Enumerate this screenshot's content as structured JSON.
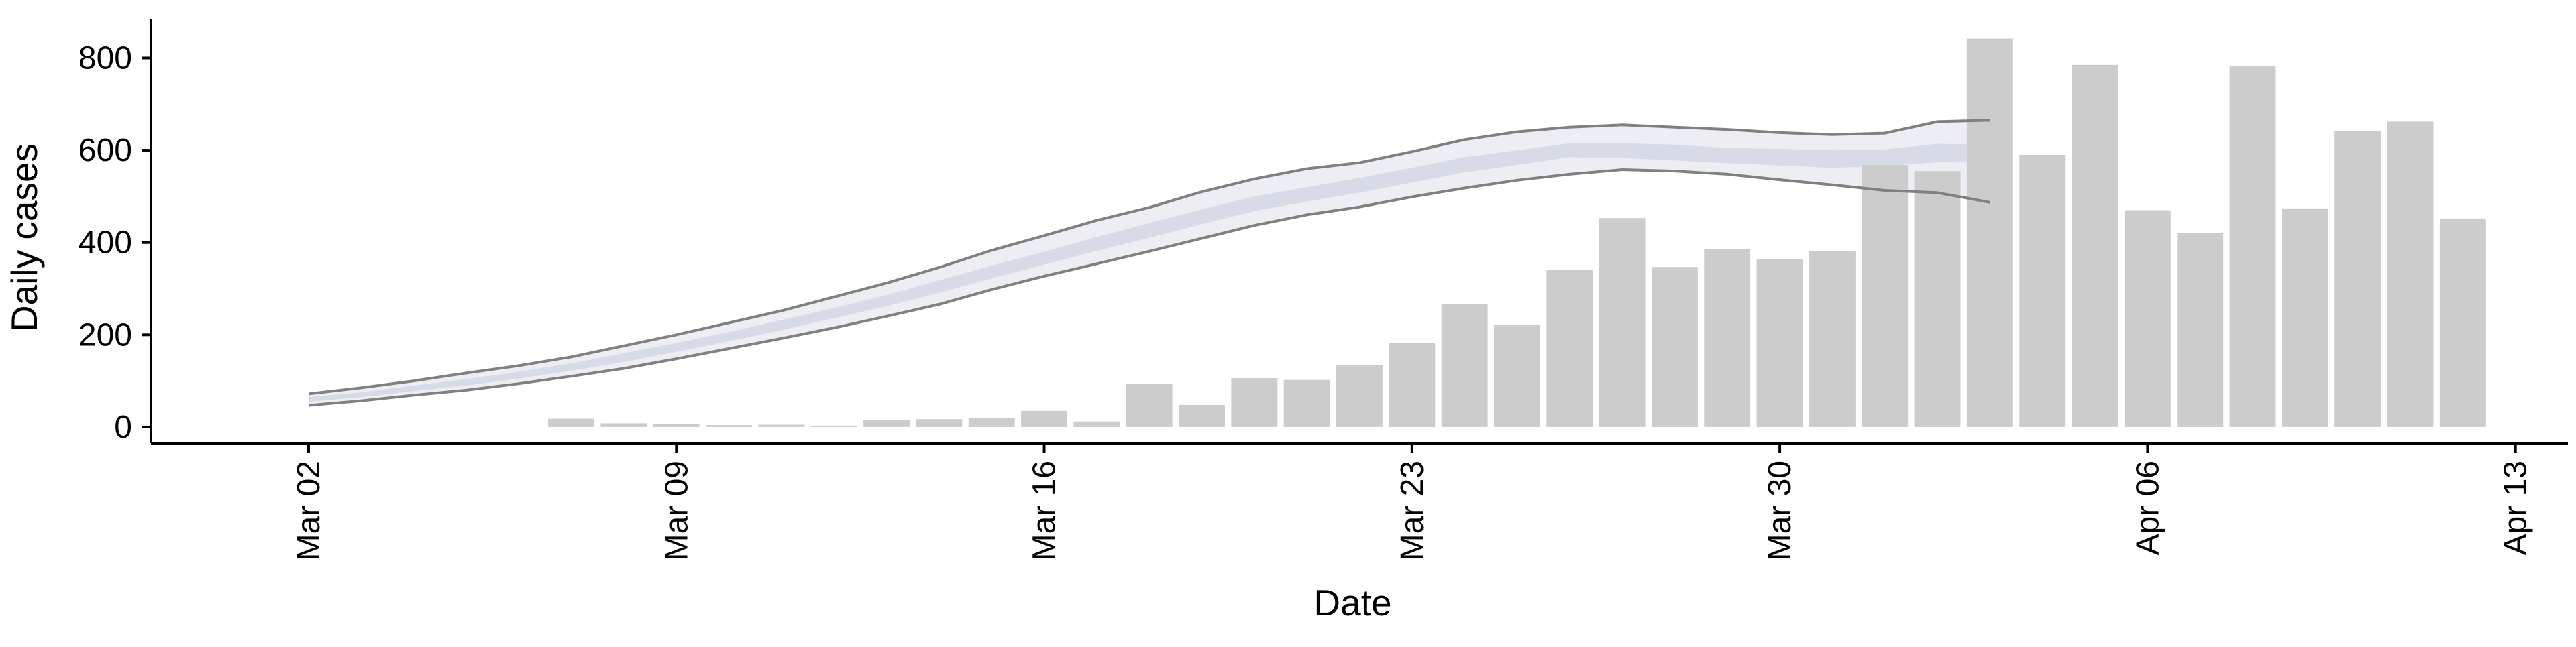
{
  "chart_data": {
    "type": "bar",
    "xlabel": "Date",
    "ylabel": "Daily cases",
    "ylim": [
      -35,
      885
    ],
    "y_ticks": [
      0,
      200,
      400,
      600,
      800
    ],
    "x_ticks": [
      {
        "date": "2020-03-02",
        "label": "Mar 02"
      },
      {
        "date": "2020-03-09",
        "label": "Mar 09"
      },
      {
        "date": "2020-03-16",
        "label": "Mar 16"
      },
      {
        "date": "2020-03-23",
        "label": "Mar 23"
      },
      {
        "date": "2020-03-30",
        "label": "Mar 30"
      },
      {
        "date": "2020-04-06",
        "label": "Apr 06"
      },
      {
        "date": "2020-04-13",
        "label": "Apr 13"
      }
    ],
    "xlim": [
      "2020-02-28",
      "2020-04-14"
    ],
    "grid": false,
    "bars": {
      "color": "#cccccc",
      "dates": [
        "2020-03-07",
        "2020-03-08",
        "2020-03-09",
        "2020-03-10",
        "2020-03-11",
        "2020-03-12",
        "2020-03-13",
        "2020-03-14",
        "2020-03-15",
        "2020-03-16",
        "2020-03-17",
        "2020-03-18",
        "2020-03-19",
        "2020-03-20",
        "2020-03-21",
        "2020-03-22",
        "2020-03-23",
        "2020-03-24",
        "2020-03-25",
        "2020-03-26",
        "2020-03-27",
        "2020-03-28",
        "2020-03-29",
        "2020-03-30",
        "2020-03-31",
        "2020-04-01",
        "2020-04-02",
        "2020-04-03",
        "2020-04-04",
        "2020-04-05",
        "2020-04-06",
        "2020-04-07",
        "2020-04-08",
        "2020-04-09",
        "2020-04-10",
        "2020-04-11",
        "2020-04-12"
      ],
      "values": [
        18,
        8,
        6,
        4,
        5,
        3,
        15,
        17,
        20,
        35,
        12,
        93,
        48,
        106,
        102,
        134,
        183,
        266,
        222,
        341,
        453,
        347,
        386,
        364,
        381,
        568,
        555,
        842,
        590,
        785,
        470,
        421,
        782,
        474,
        641,
        662,
        452
      ]
    },
    "model": {
      "band_color": "#c9cee0",
      "band_opacity": 0.35,
      "core_opacity": 0.6,
      "edge_color": "#808080",
      "dates": [
        "2020-03-02",
        "2020-03-03",
        "2020-03-04",
        "2020-03-05",
        "2020-03-06",
        "2020-03-07",
        "2020-03-08",
        "2020-03-09",
        "2020-03-10",
        "2020-03-11",
        "2020-03-12",
        "2020-03-13",
        "2020-03-14",
        "2020-03-15",
        "2020-03-16",
        "2020-03-17",
        "2020-03-18",
        "2020-03-19",
        "2020-03-20",
        "2020-03-21",
        "2020-03-22",
        "2020-03-23",
        "2020-03-24",
        "2020-03-25",
        "2020-03-26",
        "2020-03-27",
        "2020-03-28",
        "2020-03-29",
        "2020-03-30",
        "2020-03-31",
        "2020-04-01",
        "2020-04-02",
        "2020-04-03"
      ],
      "upper": [
        72,
        85,
        100,
        117,
        133,
        152,
        176,
        200,
        226,
        252,
        282,
        312,
        346,
        383,
        415,
        448,
        476,
        510,
        538,
        560,
        573,
        597,
        623,
        640,
        650,
        655,
        650,
        645,
        638,
        634,
        637,
        662,
        665
      ],
      "core_upper": [
        65,
        75,
        90,
        104,
        120,
        138,
        160,
        182,
        206,
        232,
        258,
        286,
        318,
        350,
        380,
        412,
        442,
        472,
        500,
        520,
        540,
        562,
        585,
        600,
        615,
        615,
        612,
        605,
        603,
        600,
        602,
        614,
        612
      ],
      "core_lower": [
        55,
        65,
        78,
        90,
        105,
        122,
        141,
        163,
        186,
        210,
        236,
        262,
        291,
        322,
        352,
        382,
        410,
        440,
        468,
        489,
        508,
        530,
        552,
        568,
        585,
        583,
        578,
        572,
        567,
        562,
        566,
        574,
        578
      ],
      "lower": [
        47,
        57,
        69,
        80,
        94,
        110,
        127,
        148,
        170,
        192,
        215,
        240,
        266,
        298,
        327,
        354,
        381,
        409,
        437,
        460,
        477,
        499,
        518,
        535,
        548,
        558,
        555,
        548,
        536,
        525,
        513,
        508,
        487
      ]
    }
  }
}
